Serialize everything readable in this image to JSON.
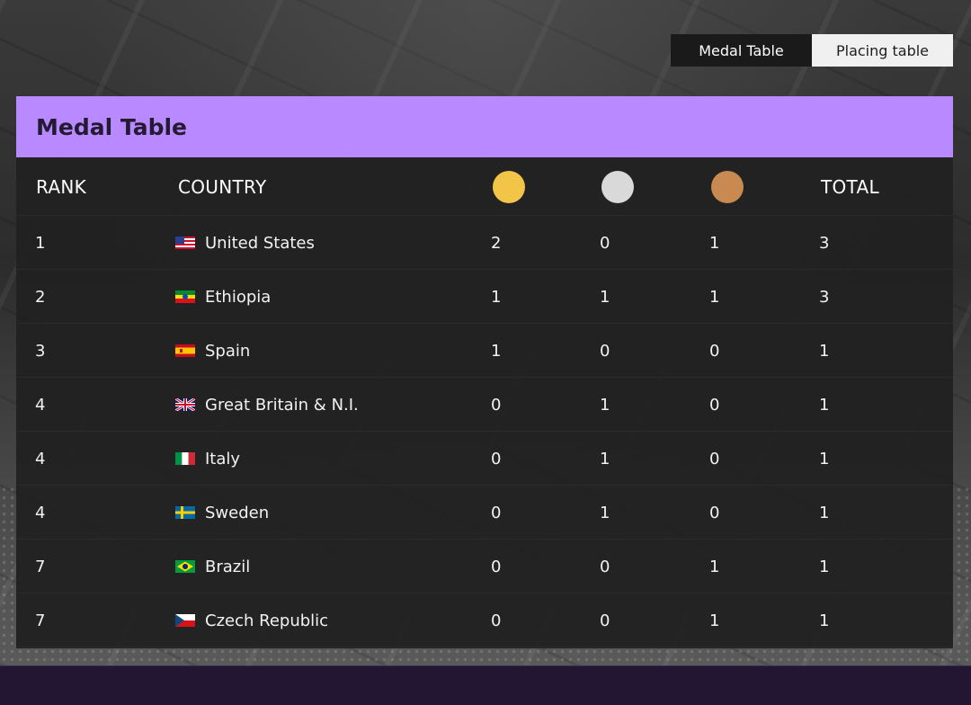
{
  "toggle": {
    "medal_table_label": "Medal Table",
    "placing_table_label": "Placing table"
  },
  "panel": {
    "title": "Medal Table"
  },
  "columns": {
    "rank": "RANK",
    "country": "COUNTRY",
    "gold_icon": "gold-medal-icon",
    "silver_icon": "silver-medal-icon",
    "bronze_icon": "bronze-medal-icon",
    "total": "TOTAL"
  },
  "colors": {
    "accent": "#b98aff",
    "gold": "#f2c447",
    "silver": "#d9d9d9",
    "bronze": "#c98a52",
    "footer": "#221633"
  },
  "rows": [
    {
      "rank": "1",
      "country": "United States",
      "flag": "us-flag-icon",
      "gold": "2",
      "silver": "0",
      "bronze": "1",
      "total": "3"
    },
    {
      "rank": "2",
      "country": "Ethiopia",
      "flag": "ethiopia-flag-icon",
      "gold": "1",
      "silver": "1",
      "bronze": "1",
      "total": "3"
    },
    {
      "rank": "3",
      "country": "Spain",
      "flag": "spain-flag-icon",
      "gold": "1",
      "silver": "0",
      "bronze": "0",
      "total": "1"
    },
    {
      "rank": "4",
      "country": "Great Britain & N.I.",
      "flag": "uk-flag-icon",
      "gold": "0",
      "silver": "1",
      "bronze": "0",
      "total": "1"
    },
    {
      "rank": "4",
      "country": "Italy",
      "flag": "italy-flag-icon",
      "gold": "0",
      "silver": "1",
      "bronze": "0",
      "total": "1"
    },
    {
      "rank": "4",
      "country": "Sweden",
      "flag": "sweden-flag-icon",
      "gold": "0",
      "silver": "1",
      "bronze": "0",
      "total": "1"
    },
    {
      "rank": "7",
      "country": "Brazil",
      "flag": "brazil-flag-icon",
      "gold": "0",
      "silver": "0",
      "bronze": "1",
      "total": "1"
    },
    {
      "rank": "7",
      "country": "Czech Republic",
      "flag": "czech-flag-icon",
      "gold": "0",
      "silver": "0",
      "bronze": "1",
      "total": "1"
    }
  ]
}
